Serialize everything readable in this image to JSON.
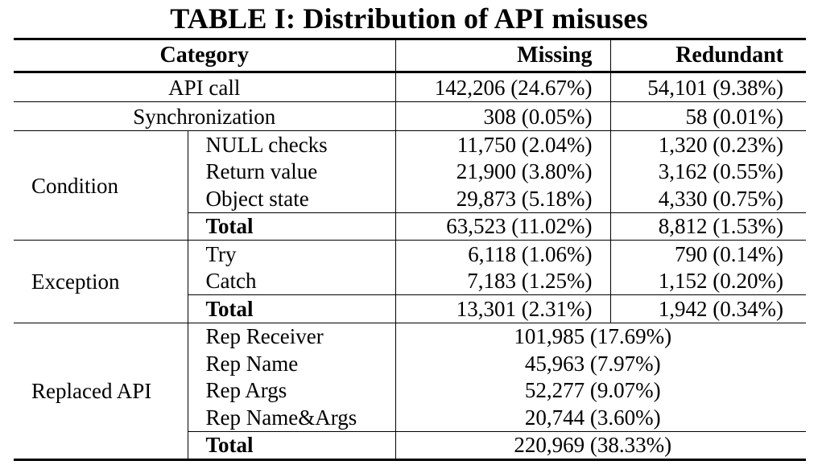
{
  "title": "TABLE I: Distribution of API misuses",
  "header": {
    "category": "Category",
    "missing": "Missing",
    "redundant": "Redundant"
  },
  "rows": {
    "api_call": {
      "label": "API call",
      "missing": "142,206 (24.67%)",
      "redundant": "54,101 (9.38%)"
    },
    "sync": {
      "label": "Synchronization",
      "missing": "308 (0.05%)",
      "redundant": "58 (0.01%)"
    },
    "condition": {
      "label": "Condition",
      "items": [
        {
          "label": "NULL checks",
          "missing": "11,750 (2.04%)",
          "redundant": "1,320 (0.23%)"
        },
        {
          "label": "Return value",
          "missing": "21,900 (3.80%)",
          "redundant": "3,162 (0.55%)"
        },
        {
          "label": "Object state",
          "missing": "29,873 (5.18%)",
          "redundant": "4,330 (0.75%)"
        }
      ],
      "total": {
        "label": "Total",
        "missing": "63,523 (11.02%)",
        "redundant": "8,812 (1.53%)"
      }
    },
    "exception": {
      "label": "Exception",
      "items": [
        {
          "label": "Try",
          "missing": "6,118 (1.06%)",
          "redundant": "790 (0.14%)"
        },
        {
          "label": "Catch",
          "missing": "7,183 (1.25%)",
          "redundant": "1,152 (0.20%)"
        }
      ],
      "total": {
        "label": "Total",
        "missing": "13,301 (2.31%)",
        "redundant": "1,942 (0.34%)"
      }
    },
    "replaced": {
      "label": "Replaced API",
      "items": [
        {
          "label": "Rep Receiver",
          "value": "101,985 (17.69%)"
        },
        {
          "label": "Rep Name",
          "value": "45,963 (7.97%)"
        },
        {
          "label": "Rep Args",
          "value": "52,277 (9.07%)"
        },
        {
          "label": "Rep Name&Args",
          "value": "20,744 (3.60%)"
        }
      ],
      "total": {
        "label": "Total",
        "value": "220,969 (38.33%)"
      }
    }
  }
}
